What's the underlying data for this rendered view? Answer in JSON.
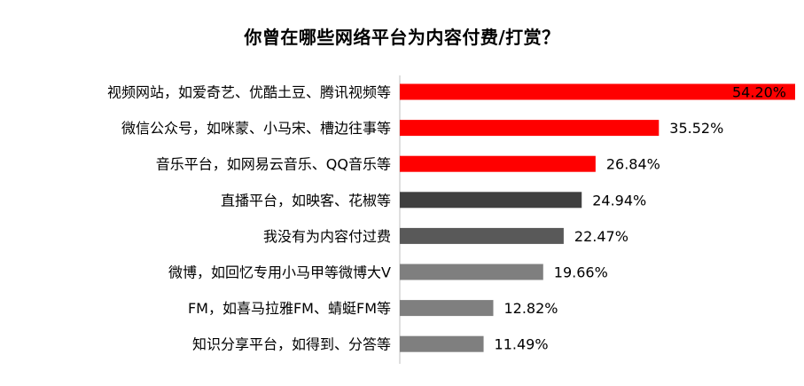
{
  "chart_data": {
    "type": "bar",
    "orientation": "horizontal",
    "title": "你曾在哪些网络平台为内容付费/打赏？",
    "categories": [
      "视频网站，如爱奇艺、优酷土豆、腾讯视频等",
      "微信公众号，如咪蒙、小马宋、槽边往事等",
      "音乐平台，如网易云音乐、QQ音乐等",
      "直播平台，如映客、花椒等",
      "我没有为内容付过费",
      "微博，如回忆专用小马甲等微博大V",
      "FM，如喜马拉雅FM、蜻蜓FM等",
      "知识分享平台，如得到、分答等"
    ],
    "values": [
      54.2,
      35.52,
      26.84,
      24.94,
      22.47,
      19.66,
      12.82,
      11.49
    ],
    "value_labels": [
      "54.20%",
      "35.52%",
      "26.84%",
      "24.94%",
      "22.47%",
      "19.66%",
      "12.82%",
      "11.49%"
    ],
    "bar_colors": [
      "#ff0000",
      "#ff0000",
      "#ff0000",
      "#404040",
      "#595959",
      "#7f7f7f",
      "#7f7f7f",
      "#7f7f7f"
    ],
    "xlim": [
      0,
      54.2
    ],
    "grid": false,
    "legend": "none"
  }
}
